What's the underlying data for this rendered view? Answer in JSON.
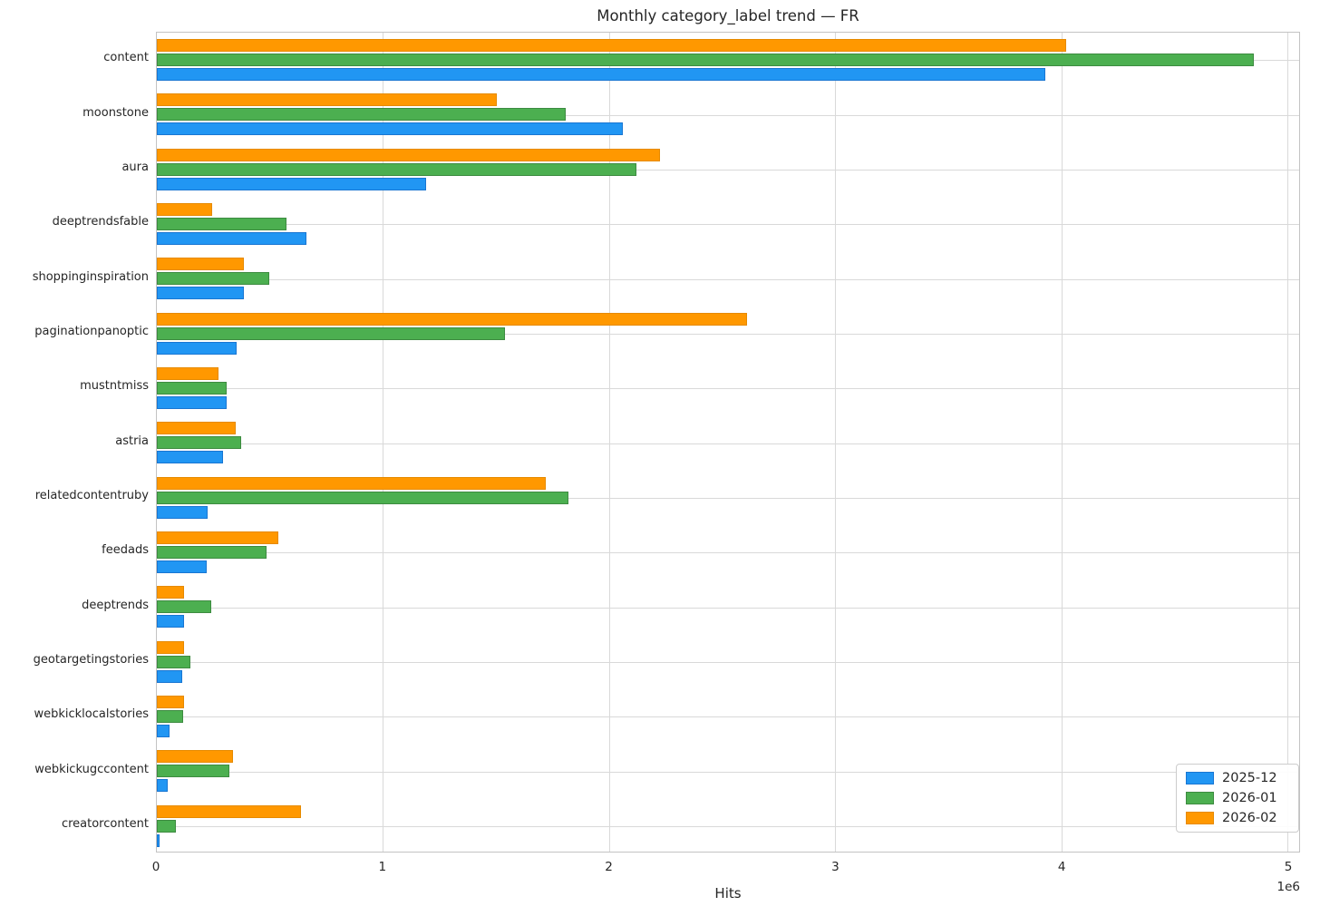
{
  "chart_data": {
    "type": "bar",
    "orientation": "horizontal",
    "title": "Monthly category_label trend — FR",
    "xlabel": "Hits",
    "axis_multiplier_label": "1e6",
    "x_ticks_millions": [
      0,
      1,
      2,
      3,
      4,
      5
    ],
    "xlim": [
      0,
      5052000
    ],
    "grid": true,
    "legend_position": "lower right",
    "categories": [
      "content",
      "moonstone",
      "aura",
      "deeptrendsfable",
      "shoppinginspiration",
      "paginationpanoptic",
      "mustntmiss",
      "astria",
      "relatedcontentruby",
      "feedads",
      "deeptrends",
      "geotargetingstories",
      "webkicklocalstories",
      "webkickugccontent",
      "creatorcontent"
    ],
    "series": [
      {
        "name": "2025-12",
        "color": "#2196F3",
        "edge_color": "#1976D2",
        "values": [
          3930000,
          2060000,
          1190000,
          660000,
          386000,
          352000,
          310000,
          292000,
          223000,
          221000,
          121000,
          113000,
          56000,
          48000,
          13000
        ]
      },
      {
        "name": "2026-01",
        "color": "#4CAF50",
        "edge_color": "#3d8b40",
        "values": [
          4850000,
          1810000,
          2120000,
          574000,
          499000,
          1540000,
          310000,
          372000,
          1820000,
          486000,
          239000,
          149000,
          117000,
          320000,
          84000
        ]
      },
      {
        "name": "2026-02",
        "color": "#FF9800",
        "edge_color": "#e68a00",
        "values": [
          4020000,
          1503000,
          2225000,
          243000,
          386000,
          2610000,
          272000,
          348000,
          1720000,
          539000,
          121000,
          121000,
          121000,
          336000,
          637000
        ]
      }
    ]
  }
}
